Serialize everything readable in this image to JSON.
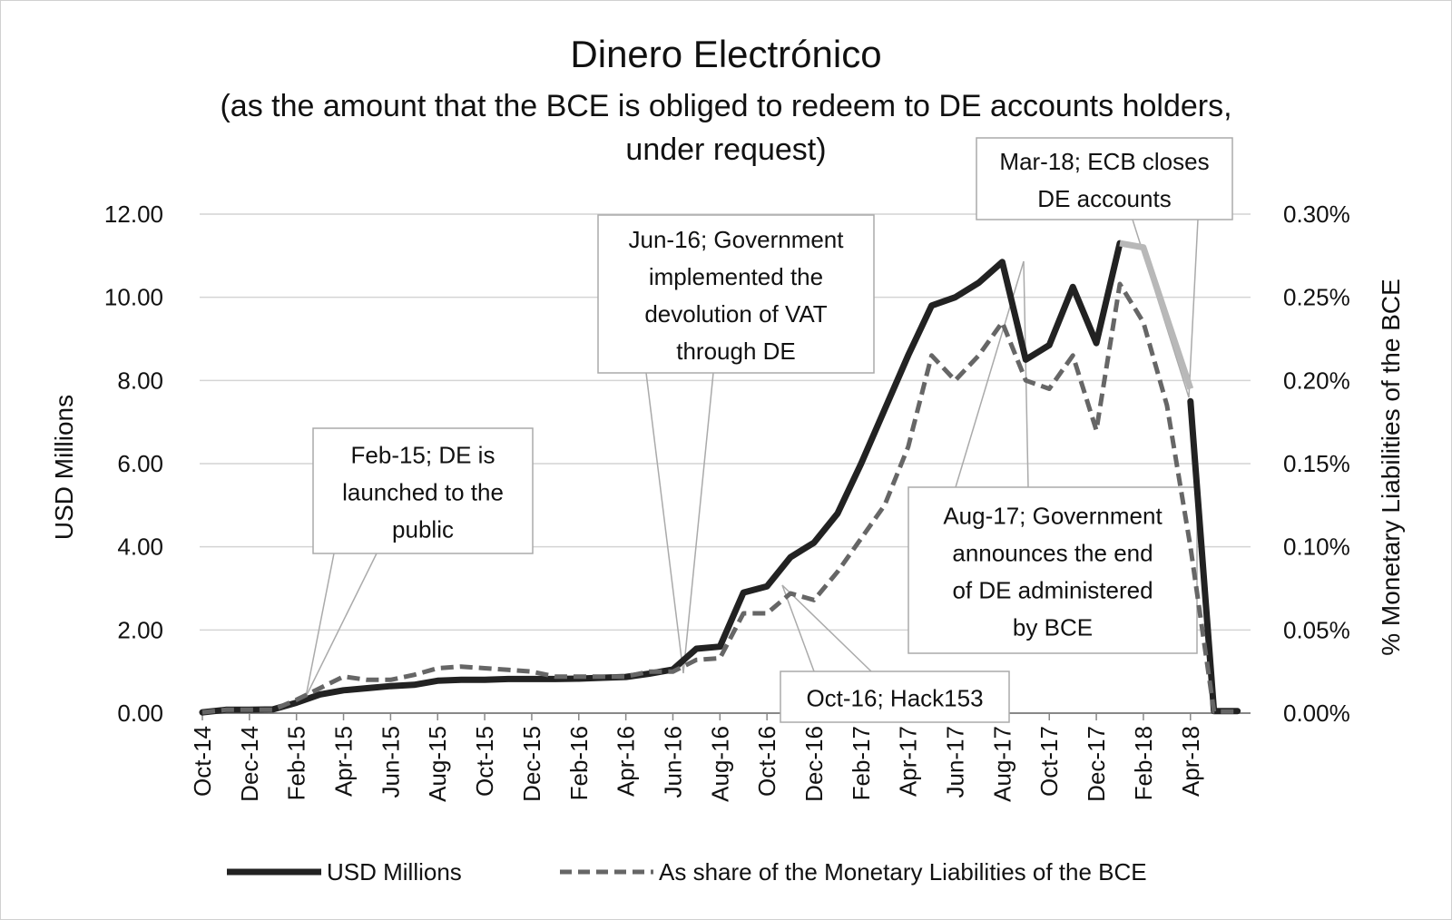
{
  "chart_data": {
    "type": "line",
    "title": "Dinero Electrónico",
    "subtitle_lines": [
      "(as the amount that the BCE is obliged to redeem to DE accounts holders,",
      "under request)"
    ],
    "ylabel": "USD Millions",
    "y2label": "% Monetary Liabilities of the BCE",
    "ylim": [
      0,
      12
    ],
    "y2lim": [
      0,
      0.3
    ],
    "y_ticks": [
      "0.00",
      "2.00",
      "4.00",
      "6.00",
      "8.00",
      "10.00",
      "12.00"
    ],
    "y2_ticks": [
      "0.00%",
      "0.05%",
      "0.10%",
      "0.15%",
      "0.20%",
      "0.25%",
      "0.30%"
    ],
    "x_tick_labels": [
      "Oct-14",
      "Dec-14",
      "Feb-15",
      "Apr-15",
      "Jun-15",
      "Aug-15",
      "Oct-15",
      "Dec-15",
      "Feb-16",
      "Apr-16",
      "Jun-16",
      "Aug-16",
      "Oct-16",
      "Dec-16",
      "Feb-17",
      "Apr-17",
      "Jun-17",
      "Aug-17",
      "Oct-17",
      "Dec-17",
      "Feb-18",
      "Apr-18"
    ],
    "grid": true,
    "legend_position": "bottom",
    "categories": [
      "Oct-14",
      "Nov-14",
      "Dec-14",
      "Jan-15",
      "Feb-15",
      "Mar-15",
      "Apr-15",
      "May-15",
      "Jun-15",
      "Jul-15",
      "Aug-15",
      "Sep-15",
      "Oct-15",
      "Nov-15",
      "Dec-15",
      "Jan-16",
      "Feb-16",
      "Mar-16",
      "Apr-16",
      "May-16",
      "Jun-16",
      "Jul-16",
      "Aug-16",
      "Sep-16",
      "Oct-16",
      "Nov-16",
      "Dec-16",
      "Jan-17",
      "Feb-17",
      "Mar-17",
      "Apr-17",
      "May-17",
      "Jun-17",
      "Jul-17",
      "Aug-17",
      "Sep-17",
      "Oct-17",
      "Nov-17",
      "Dec-17",
      "Jan-18",
      "Feb-18",
      "Mar-18",
      "Apr-18",
      "May-18",
      "Jun-18"
    ],
    "series": [
      {
        "name": "USD Millions",
        "axis": "left",
        "style": "solid",
        "color": "#222222",
        "values": [
          0.02,
          0.08,
          0.08,
          0.09,
          0.25,
          0.45,
          0.55,
          0.6,
          0.65,
          0.68,
          0.78,
          0.8,
          0.8,
          0.82,
          0.82,
          0.82,
          0.83,
          0.85,
          0.87,
          0.95,
          1.05,
          1.55,
          1.6,
          2.9,
          3.05,
          3.75,
          4.1,
          4.8,
          6.0,
          7.3,
          8.6,
          9.8,
          10.0,
          10.35,
          10.85,
          8.5,
          8.85,
          10.25,
          8.9,
          11.3,
          null,
          null,
          7.5,
          0.05,
          0.05
        ],
        "values_mar18_segment": [
          11.3,
          11.2,
          7.8
        ]
      },
      {
        "name": "As share of the Monetary Liabilities of the BCE",
        "axis": "right",
        "style": "dashed",
        "color": "#666666",
        "values": [
          0.0005,
          0.002,
          0.002,
          0.002,
          0.008,
          0.015,
          0.022,
          0.02,
          0.02,
          0.023,
          0.027,
          0.028,
          0.027,
          0.026,
          0.025,
          0.022,
          0.022,
          0.022,
          0.022,
          0.025,
          0.025,
          0.032,
          0.033,
          0.06,
          0.06,
          0.072,
          0.068,
          0.085,
          0.105,
          0.125,
          0.16,
          0.215,
          0.2,
          0.215,
          0.235,
          0.2,
          0.195,
          0.215,
          0.17,
          0.258,
          0.235,
          0.185,
          0.1,
          0.001,
          0.001
        ]
      }
    ],
    "annotations": [
      {
        "id": "feb15",
        "lines": [
          "Feb-15; DE is",
          "launched to the",
          "public"
        ]
      },
      {
        "id": "jun16",
        "lines": [
          "Jun-16; Government",
          "implemented the",
          "devolution of VAT",
          "through DE"
        ]
      },
      {
        "id": "mar18",
        "lines": [
          "Mar-18; ECB closes",
          "DE accounts"
        ]
      },
      {
        "id": "aug17",
        "lines": [
          "Aug-17; Government",
          "announces the end",
          "of DE administered",
          "by BCE"
        ]
      },
      {
        "id": "oct16",
        "lines": [
          "Oct-16; Hack153"
        ]
      }
    ]
  }
}
